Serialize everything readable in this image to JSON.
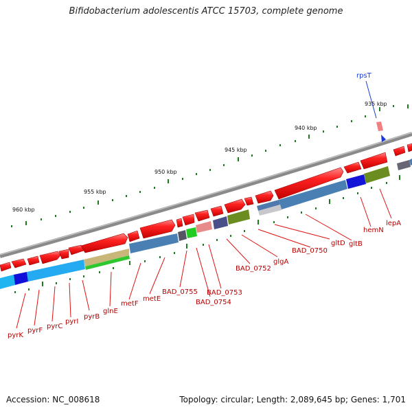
{
  "title": "Bifidobacterium adolescentis ATCC 15703, complete genome",
  "footer": {
    "accession": "Accession: NC_008618",
    "summary": "Topology: circular; Length: 2,089,645 bp; Genes: 1,701"
  },
  "scale": {
    "ticks": [
      "935 kbp",
      "940 kbp",
      "945 kbp",
      "950 kbp",
      "955 kbp",
      "960 kbp"
    ]
  },
  "genes": {
    "bottom": [
      "pyrK",
      "pyrF",
      "pyrC",
      "pyrI",
      "pyrB",
      "glnE",
      "metF",
      "metE",
      "BAD_0755",
      "BAD_0754",
      "BAD_0753",
      "BAD_0752",
      "glgA",
      "BAD_0750",
      "gltD",
      "gltB",
      "hemN",
      "lepA"
    ],
    "top": [
      "rpsT"
    ]
  },
  "colors": {
    "backbone": "#7a7a7a",
    "gene_red": "#ee1111",
    "tick_green": "#1f7a1f",
    "label_red": "#b30000",
    "rps_blue": "#1a3ad6"
  }
}
